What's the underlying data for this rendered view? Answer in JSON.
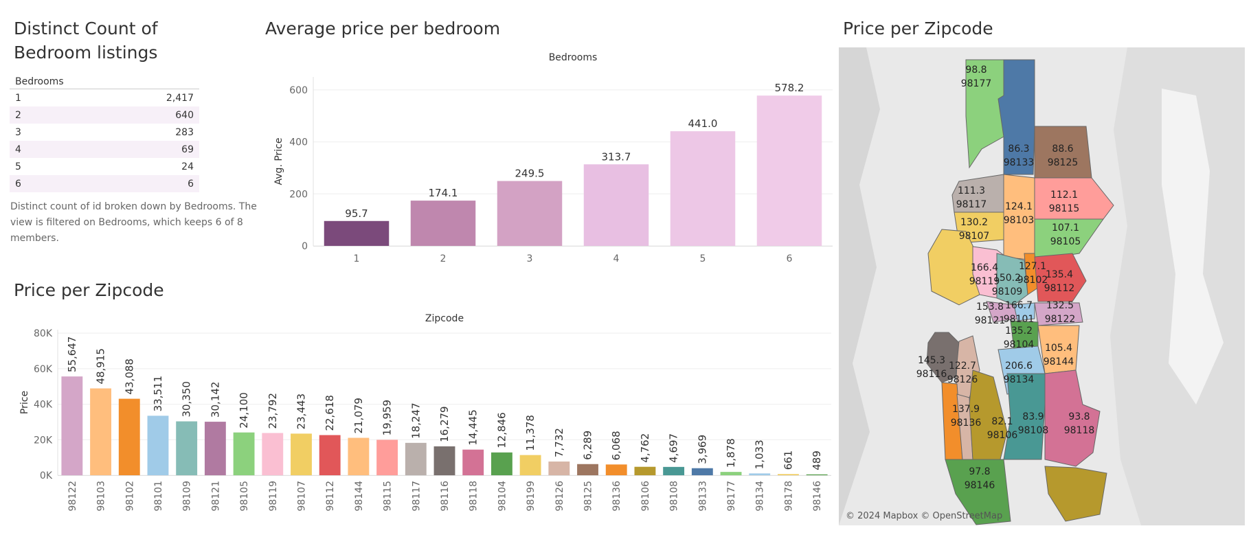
{
  "panels": {
    "table_title": "Distinct Count of Bedroom listings",
    "table_title_line1": "Distinct Count of",
    "table_title_line2": "Bedroom listings",
    "table_note": "Distinct count of id broken down by Bedrooms. The view is filtered on Bedrooms, which keeps 6 of 8 members.",
    "bedroom_chart_title": "Average price per bedroom",
    "zip_chart_title": "Price per Zipcode",
    "map_title": "Price per Zipcode",
    "map_attribution": "© 2024 Mapbox © OpenStreetMap"
  },
  "table": {
    "header": "Bedrooms",
    "rows": [
      {
        "bedrooms": "1",
        "count": "2,417"
      },
      {
        "bedrooms": "2",
        "count": "640"
      },
      {
        "bedrooms": "3",
        "count": "283"
      },
      {
        "bedrooms": "4",
        "count": "69"
      },
      {
        "bedrooms": "5",
        "count": "24"
      },
      {
        "bedrooms": "6",
        "count": "6"
      }
    ]
  },
  "chart_data": [
    {
      "type": "bar",
      "title": "Average price per bedroom",
      "column_header": "Bedrooms",
      "ylabel": "Avg. Price",
      "ylim": [
        0,
        650
      ],
      "yticks": [
        0,
        200,
        400,
        600
      ],
      "categories": [
        "1",
        "2",
        "3",
        "4",
        "5",
        "6"
      ],
      "values": [
        95.7,
        174.1,
        249.5,
        313.7,
        441.0,
        578.2
      ],
      "labels": [
        "95.7",
        "174.1",
        "249.5",
        "313.7",
        "441.0",
        "578.2"
      ],
      "colors": [
        "#7b4a7b",
        "#bf87ae",
        "#d3a2c4",
        "#e8bfe2",
        "#edc7e6",
        "#f0cbe8"
      ],
      "grid": true
    },
    {
      "type": "bar",
      "title": "Price per Zipcode",
      "column_header": "Zipcode",
      "ylabel": "Price",
      "ylim": [
        0,
        82000
      ],
      "yticks": [
        0,
        20000,
        40000,
        60000,
        80000
      ],
      "ytick_labels": [
        "0K",
        "20K",
        "40K",
        "60K",
        "80K"
      ],
      "categories": [
        "98122",
        "98103",
        "98102",
        "98101",
        "98109",
        "98121",
        "98105",
        "98119",
        "98107",
        "98112",
        "98144",
        "98115",
        "98117",
        "98116",
        "98118",
        "98104",
        "98199",
        "98126",
        "98125",
        "98136",
        "98106",
        "98108",
        "98133",
        "98177",
        "98134",
        "98178",
        "98146"
      ],
      "values": [
        55647,
        48915,
        43088,
        33511,
        30350,
        30142,
        24100,
        23792,
        23443,
        22618,
        21079,
        19959,
        18247,
        16279,
        14445,
        12846,
        11378,
        7732,
        6289,
        6068,
        4762,
        4697,
        3969,
        1878,
        1033,
        661,
        489
      ],
      "labels": [
        "55,647",
        "48,915",
        "43,088",
        "33,511",
        "30,350",
        "30,142",
        "24,100",
        "23,792",
        "23,443",
        "22,618",
        "21,079",
        "19,959",
        "18,247",
        "16,279",
        "14,445",
        "12,846",
        "11,378",
        "7,732",
        "6,289",
        "6,068",
        "4,762",
        "4,697",
        "3,969",
        "1,878",
        "1,033",
        "661",
        "489"
      ],
      "colors": [
        "#d4a6c8",
        "#ffbe7d",
        "#f28e2b",
        "#a0cbe8",
        "#86bcb6",
        "#b07aa1",
        "#8cd17d",
        "#fabfd2",
        "#f1ce63",
        "#e15759",
        "#ffbe7d",
        "#ff9d9a",
        "#bab0ac",
        "#79706e",
        "#d37295",
        "#59a14f",
        "#f1ce63",
        "#d7b5a6",
        "#9d7660",
        "#f28e2b",
        "#b6992d",
        "#499894",
        "#4e79a7",
        "#8cd17d",
        "#a0cbe8",
        "#f1ce63",
        "#59a14f"
      ],
      "grid": true
    }
  ],
  "map_labels": [
    {
      "value": "98.8",
      "zip": "98177"
    },
    {
      "value": "86.3",
      "zip": "98133"
    },
    {
      "value": "88.6",
      "zip": "98125"
    },
    {
      "value": "111.3",
      "zip": "98117"
    },
    {
      "value": "124.1",
      "zip": "98103"
    },
    {
      "value": "112.1",
      "zip": "98115"
    },
    {
      "value": "130.2",
      "zip": "98107"
    },
    {
      "value": "107.1",
      "zip": "98105"
    },
    {
      "value": "166.4",
      "zip": "98119"
    },
    {
      "value": "150.2",
      "zip": "98109"
    },
    {
      "value": "127.1",
      "zip": "98102"
    },
    {
      "value": "135.4",
      "zip": "98112"
    },
    {
      "value": "153.8",
      "zip": "98121"
    },
    {
      "value": "166.7",
      "zip": "98101"
    },
    {
      "value": "132.5",
      "zip": "98122"
    },
    {
      "value": "135.2",
      "zip": "98104"
    },
    {
      "value": "105.4",
      "zip": "98144"
    },
    {
      "value": "145.3",
      "zip": "98116"
    },
    {
      "value": "122.7",
      "zip": "98126"
    },
    {
      "value": "206.6",
      "zip": "98134"
    },
    {
      "value": "137.9",
      "zip": "98136"
    },
    {
      "value": "82.1",
      "zip": "98106"
    },
    {
      "value": "83.9",
      "zip": "98108"
    },
    {
      "value": "93.8",
      "zip": "98118"
    },
    {
      "value": "97.8",
      "zip": "98146"
    }
  ]
}
